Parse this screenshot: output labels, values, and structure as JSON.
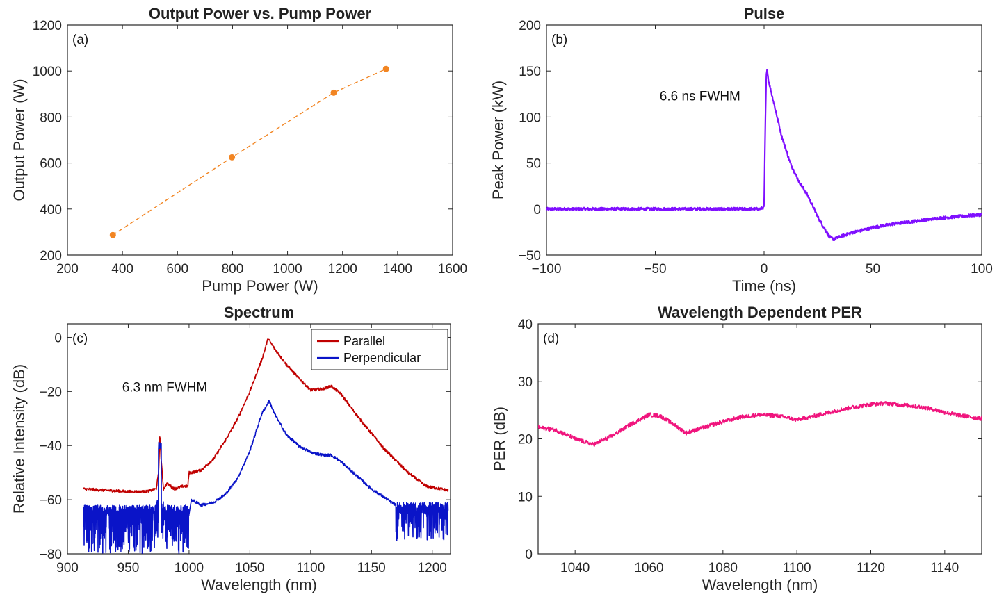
{
  "chart_data": [
    {
      "id": "a",
      "type": "line",
      "title": "Output Power vs. Pump Power",
      "panel_label": "(a)",
      "xlabel": "Pump Power (W)",
      "ylabel": "Output Power (W)",
      "xlim": [
        200,
        1600
      ],
      "ylim": [
        200,
        1200
      ],
      "xticks": [
        200,
        400,
        600,
        800,
        1000,
        1200,
        1400,
        1600
      ],
      "yticks": [
        200,
        400,
        600,
        800,
        1000,
        1200
      ],
      "grid": false,
      "series": [
        {
          "x": [
            365,
            798,
            1168,
            1358
          ],
          "y": [
            287,
            625,
            906,
            1009
          ],
          "color": "#F28522",
          "style": "dashed",
          "marker": "circle"
        }
      ]
    },
    {
      "id": "b",
      "type": "line",
      "title": "Pulse",
      "panel_label": "(b)",
      "xlabel": "Time (ns)",
      "ylabel": "Peak Power (kW)",
      "xlim": [
        -100,
        100
      ],
      "ylim": [
        -50,
        200
      ],
      "xticks": [
        -100,
        -50,
        0,
        50,
        100
      ],
      "yticks": [
        -50,
        0,
        50,
        100,
        150,
        200
      ],
      "grid": false,
      "annotations": [
        {
          "text": "6.6 ns FWHM",
          "x": -48,
          "y": 118
        }
      ],
      "series": [
        {
          "color": "#7F0FFF",
          "noise": 1.6,
          "x": [
            -100,
            -60,
            -20,
            -2,
            0,
            0.5,
            1,
            1.5,
            2,
            3,
            5,
            8,
            12,
            16,
            20,
            25,
            30,
            32,
            35,
            40,
            50,
            60,
            70,
            80,
            90,
            100
          ],
          "y": [
            0,
            0,
            0,
            0,
            2,
            80,
            145,
            152,
            140,
            130,
            110,
            80,
            50,
            30,
            15,
            -10,
            -30,
            -33,
            -30,
            -26,
            -20,
            -16,
            -13,
            -10,
            -8,
            -6
          ]
        }
      ]
    },
    {
      "id": "c",
      "type": "line",
      "title": "Spectrum",
      "panel_label": "(c)",
      "xlabel": "Wavelength (nm)",
      "ylabel": "Relative Intensity (dB)",
      "xlim": [
        900,
        1215
      ],
      "ylim": [
        -80,
        5
      ],
      "xticks": [
        900,
        950,
        1000,
        1050,
        1100,
        1150,
        1200
      ],
      "yticks": [
        -80,
        -60,
        -40,
        -20,
        0
      ],
      "grid": false,
      "legend": "top-right",
      "annotations": [
        {
          "text": "6.3 nm FWHM",
          "x": 945,
          "y": -20
        }
      ],
      "series": [
        {
          "name": "Parallel",
          "color": "#C00000",
          "noise": 0.5,
          "x": [
            913,
            930,
            950,
            965,
            973,
            975,
            976,
            977,
            979,
            982,
            988,
            995,
            999,
            1000,
            1002,
            1010,
            1020,
            1030,
            1040,
            1050,
            1060,
            1065,
            1070,
            1080,
            1090,
            1100,
            1110,
            1117,
            1125,
            1140,
            1160,
            1180,
            1195,
            1213
          ],
          "y": [
            -56,
            -56.5,
            -57,
            -57,
            -56,
            -50,
            -36,
            -45,
            -56,
            -54,
            -56,
            -55,
            -55,
            -50,
            -50,
            -49,
            -45,
            -38,
            -30,
            -20,
            -8,
            -0.5,
            -4,
            -10,
            -15,
            -19.5,
            -19,
            -18,
            -21,
            -30,
            -41,
            -50,
            -55,
            -56.5
          ]
        },
        {
          "name": "Perpendicular",
          "color": "#0A14C8",
          "noise": 0.5,
          "x": [
            1002,
            1010,
            1020,
            1030,
            1040,
            1050,
            1060,
            1066,
            1070,
            1080,
            1090,
            1100,
            1110,
            1117,
            1125,
            1140,
            1150,
            1160,
            1170
          ],
          "y": [
            -60,
            -62,
            -61,
            -58,
            -52,
            -42,
            -28,
            -23.5,
            -28,
            -36,
            -40,
            -42.5,
            -43.5,
            -43.5,
            -46,
            -52,
            -56,
            -59,
            -62
          ],
          "noisy_left": {
            "x0": 913,
            "x1": 1000,
            "base": -64,
            "min": -80
          },
          "noisy_right": {
            "x0": 1170,
            "x1": 1213,
            "base": -63,
            "min": -75
          },
          "peak": {
            "x": 976,
            "y": -40
          }
        }
      ]
    },
    {
      "id": "d",
      "type": "line",
      "title": "Wavelength Dependent PER",
      "panel_label": "(d)",
      "xlabel": "Wavelength (nm)",
      "ylabel": "PER (dB)",
      "xlim": [
        1030,
        1150
      ],
      "ylim": [
        0,
        40
      ],
      "xticks": [
        1040,
        1060,
        1080,
        1100,
        1120,
        1140
      ],
      "yticks": [
        0,
        10,
        20,
        30,
        40
      ],
      "grid": false,
      "series": [
        {
          "color": "#F0147D",
          "noise": 0.35,
          "x": [
            1030,
            1035,
            1040,
            1045,
            1050,
            1055,
            1060,
            1063,
            1066,
            1070,
            1074,
            1080,
            1085,
            1090,
            1095,
            1100,
            1105,
            1110,
            1115,
            1120,
            1124,
            1130,
            1135,
            1140,
            1145,
            1150
          ],
          "y": [
            22,
            21.5,
            20,
            19,
            20.5,
            22.5,
            24.2,
            24,
            22.8,
            21,
            21.8,
            23,
            23.8,
            24.2,
            24,
            23.3,
            24,
            24.8,
            25.5,
            26,
            26.2,
            25.8,
            25.4,
            24.6,
            24,
            23.5
          ]
        }
      ]
    }
  ]
}
